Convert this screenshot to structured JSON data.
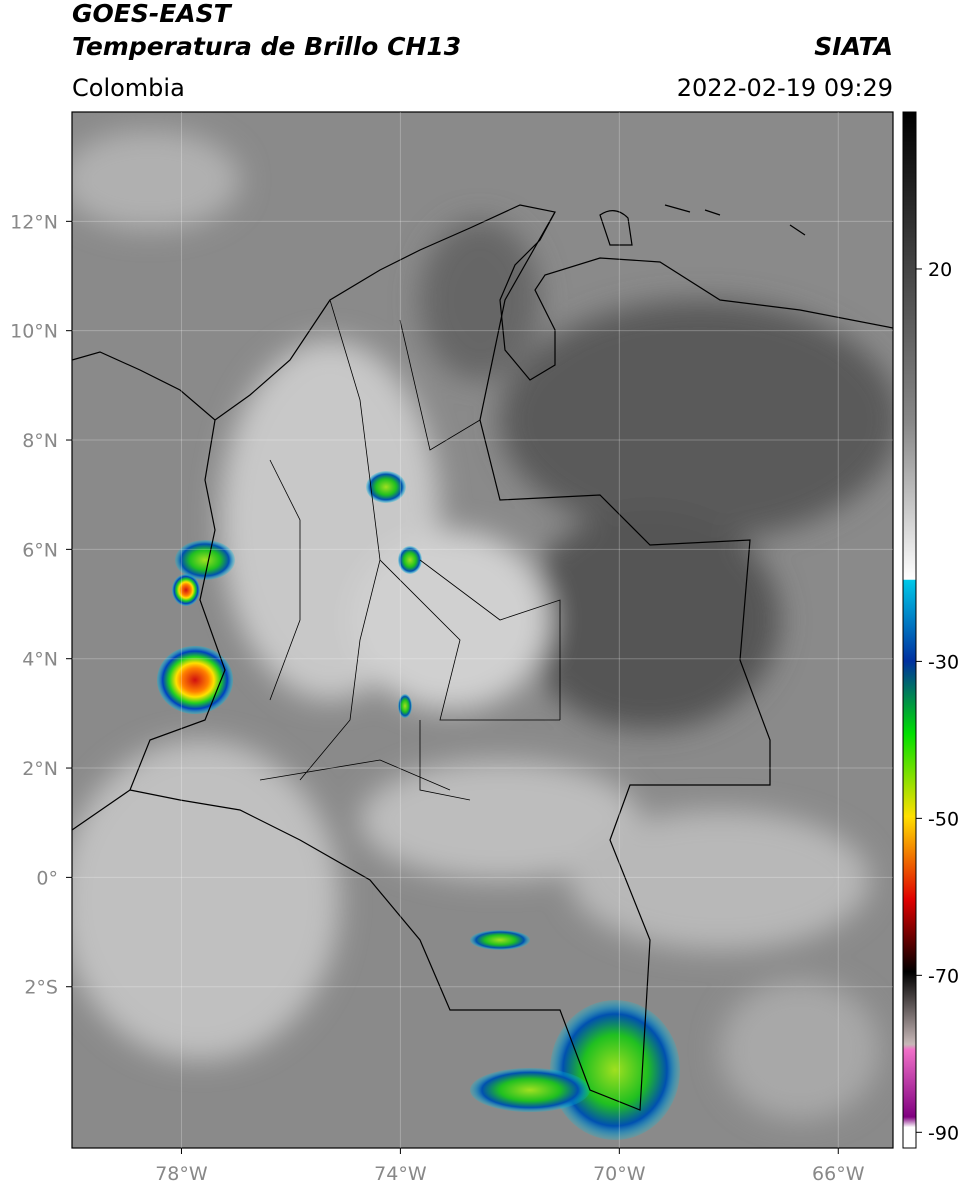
{
  "header": {
    "satellite": "GOES-EAST",
    "product": "Temperatura de Brillo CH13",
    "source": "SIATA",
    "region": "Colombia",
    "datetime": "2022-02-19 09:29"
  },
  "map": {
    "lonlim": [
      -80,
      -65
    ],
    "latlim": [
      -4.95,
      14
    ],
    "lonticks": [
      {
        "value": -78,
        "label": "78°W"
      },
      {
        "value": -74,
        "label": "74°W"
      },
      {
        "value": -70,
        "label": "70°W"
      },
      {
        "value": -66,
        "label": "66°W"
      }
    ],
    "latticks": [
      {
        "value": 12,
        "label": "12°N"
      },
      {
        "value": 10,
        "label": "10°N"
      },
      {
        "value": 8,
        "label": "8°N"
      },
      {
        "value": 6,
        "label": "6°N"
      },
      {
        "value": 4,
        "label": "4°N"
      },
      {
        "value": 2,
        "label": "2°N"
      },
      {
        "value": 0,
        "label": "0°"
      },
      {
        "value": -2,
        "label": "2°S"
      }
    ],
    "grid": true
  },
  "colorbar": {
    "lim": [
      -92,
      40
    ],
    "ticks": [
      20,
      -30,
      -50,
      -70,
      -90
    ]
  }
}
